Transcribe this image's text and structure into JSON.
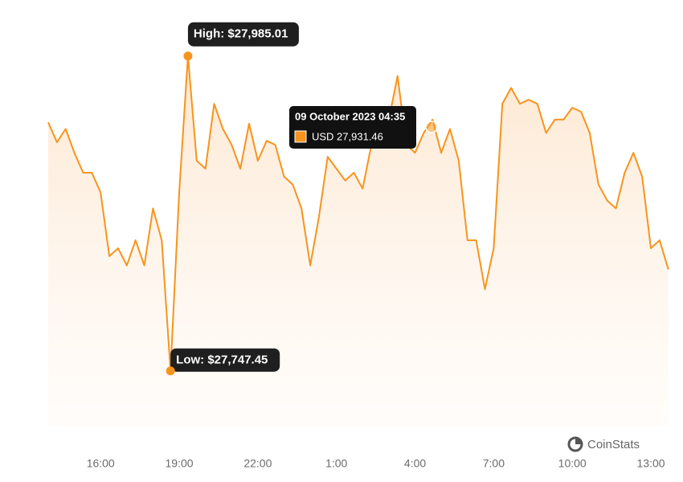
{
  "chart_data": {
    "type": "line",
    "color": "#f7941d",
    "categories": [
      null,
      null,
      null,
      null,
      null,
      null,
      "16:00",
      null,
      null,
      null,
      null,
      null,
      null,
      null,
      null,
      "19:00",
      null,
      null,
      null,
      null,
      null,
      null,
      null,
      null,
      "22:00",
      null,
      null,
      null,
      null,
      null,
      null,
      null,
      null,
      "1:00",
      null,
      null,
      null,
      null,
      null,
      null,
      null,
      null,
      "4:00",
      null,
      null,
      null,
      null,
      null,
      null,
      null,
      null,
      "7:00",
      null,
      null,
      null,
      null,
      null,
      null,
      null,
      null,
      "10:00",
      null,
      null,
      null,
      null,
      null,
      null,
      null,
      null,
      "13:00",
      null,
      null
    ],
    "values": [
      27935,
      27920,
      27930,
      27912,
      27897,
      27897,
      27882,
      27834,
      27840,
      27827,
      27846,
      27827,
      27870,
      27846,
      27747.45,
      27882,
      27985.01,
      27906,
      27900,
      27949,
      27930,
      27918,
      27900,
      27934,
      27906,
      27921,
      27918,
      27894,
      27888,
      27870,
      27827,
      27864,
      27909,
      27900,
      27891,
      27897,
      27885,
      27918,
      27927,
      27937,
      27970,
      27918,
      27912,
      27927,
      27937,
      27912,
      27930,
      27906,
      27846,
      27846,
      27809,
      27840,
      27949,
      27961,
      27949,
      27952,
      27949,
      27927,
      27937,
      27937,
      27946,
      27943,
      27927,
      27888,
      27876,
      27870,
      27897,
      27912,
      27894,
      27840,
      27846,
      27824
    ],
    "ylim": [
      27700,
      28000
    ],
    "high_label": "High: $27,985.01",
    "low_label": "Low: $27,747.45",
    "tooltip": {
      "title": "09 October 2023 04:35",
      "value": 27931.46,
      "value_label": "USD 27,931.46"
    },
    "watermark": "CoinStats"
  }
}
